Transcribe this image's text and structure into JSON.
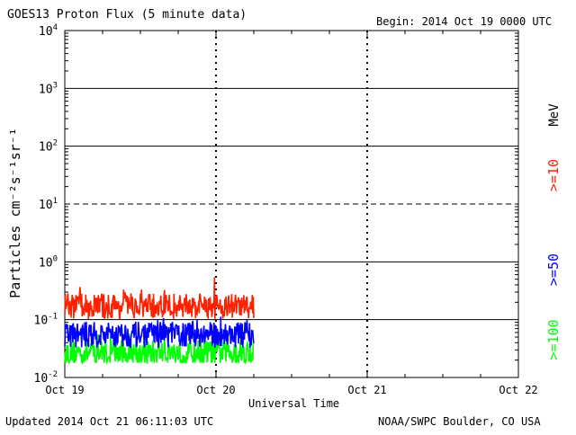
{
  "chart_data": {
    "type": "line",
    "title": "GOES13 Proton Flux (5 minute data)",
    "begin_label": "Begin: 2014 Oct 19 0000 UTC",
    "xlabel": "Universal Time",
    "ylabel": "Particles cm⁻²s⁻¹sr⁻¹",
    "yscale": "log",
    "ylim": [
      0.01,
      10000
    ],
    "y_ticks": [
      {
        "base": "10",
        "exp": "4"
      },
      {
        "base": "10",
        "exp": "3"
      },
      {
        "base": "10",
        "exp": "2"
      },
      {
        "base": "10",
        "exp": "1"
      },
      {
        "base": "10",
        "exp": "0"
      },
      {
        "base": "10",
        "exp": "-1"
      },
      {
        "base": "10",
        "exp": "-2"
      }
    ],
    "x_ticks": [
      "Oct 19",
      "Oct 20",
      "Oct 21",
      "Oct 22"
    ],
    "xlim_days": [
      0,
      3
    ],
    "data_end_day": 1.25,
    "series": [
      {
        "name": ">=10",
        "color": "#ff2000",
        "typical": 0.17,
        "min": 0.09,
        "max": 0.6
      },
      {
        "name": ">=50",
        "color": "#0000ff",
        "typical": 0.055,
        "min": 0.03,
        "max": 0.12
      },
      {
        "name": ">=100",
        "color": "#00ff00",
        "typical": 0.027,
        "min": 0.018,
        "max": 0.06
      }
    ],
    "legend_unit": "MeV",
    "grid": "horizontal lines at each decade, dashed at 10^1"
  },
  "footer": {
    "updated": "Updated 2014 Oct 21 06:11:03 UTC",
    "credit": "NOAA/SWPC Boulder, CO USA"
  }
}
